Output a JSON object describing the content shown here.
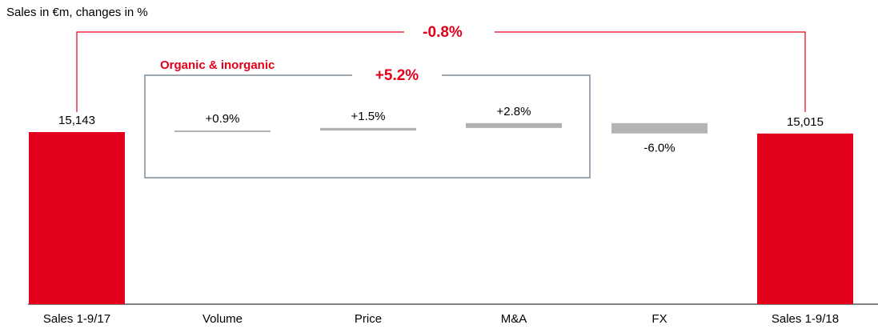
{
  "chart_data": {
    "type": "waterfall",
    "title": "Sales in €m, changes in %",
    "categories": [
      "Sales 1-9/17",
      "Volume",
      "Price",
      "M&A",
      "FX",
      "Sales 1-9/18"
    ],
    "values": [
      15143,
      0.9,
      1.5,
      2.8,
      -6.0,
      15015
    ],
    "value_labels": [
      "15,143",
      "+0.9%",
      "+1.5%",
      "+2.8%",
      "-6.0%",
      "15,015"
    ],
    "totals": [
      true,
      false,
      false,
      false,
      false,
      true
    ],
    "color": "#e2001a",
    "change_colors": [
      "#b0b0b0",
      "#b0b0b0",
      "#b0b0b0",
      "#b4b4b4"
    ],
    "annotations": [
      "-0.8%",
      "Organic & inorganic",
      "+5.2%"
    ]
  }
}
